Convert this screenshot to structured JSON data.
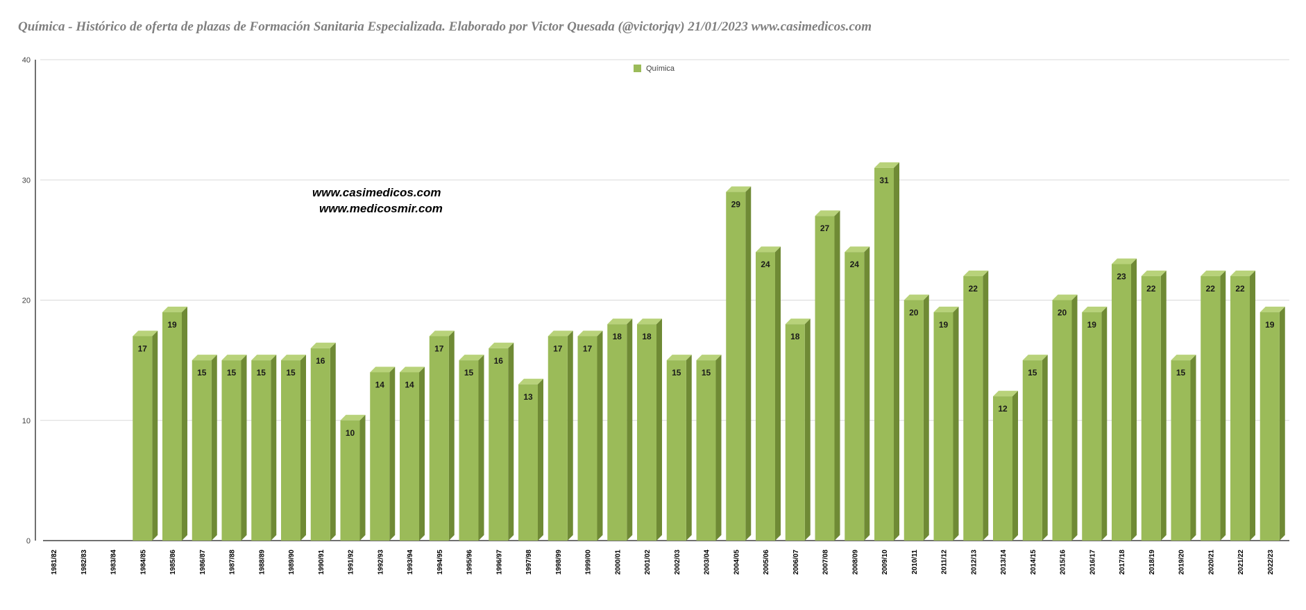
{
  "chart_data": {
    "type": "bar",
    "title": "Química - Histórico de oferta de plazas de Formación Sanitaria Especializada. Elaborado por Victor Quesada (@victorjqv)  21/01/2023 www.casimedicos.com",
    "series": [
      {
        "name": "Química",
        "color": "#9bbb59",
        "values": [
          0,
          0,
          0,
          17,
          19,
          15,
          15,
          15,
          15,
          16,
          10,
          14,
          14,
          17,
          15,
          16,
          13,
          17,
          17,
          18,
          18,
          15,
          15,
          29,
          24,
          18,
          27,
          24,
          31,
          20,
          19,
          22,
          12,
          15,
          20,
          19,
          23,
          22,
          15,
          22,
          22,
          19
        ]
      }
    ],
    "categories": [
      "1981/82",
      "1982/83",
      "1983/84",
      "1984/85",
      "1985/86",
      "1986/87",
      "1987/88",
      "1988/89",
      "1989/90",
      "1990/91",
      "1991/92",
      "1992/93",
      "1993/94",
      "1994/95",
      "1995/96",
      "1996/97",
      "1997/98",
      "1998/99",
      "1999/00",
      "2000/01",
      "2001/02",
      "2002/03",
      "2003/04",
      "2004/05",
      "2005/06",
      "2006/07",
      "2007/08",
      "2008/09",
      "2009/10",
      "2010/11",
      "2011/12",
      "2012/13",
      "2013/14",
      "2014/15",
      "2015/16",
      "2016/17",
      "2017/18",
      "2018/19",
      "2019/20",
      "2020/21",
      "2021/22",
      "2022/23"
    ],
    "ylim": [
      0,
      40
    ],
    "yticks": [
      "0",
      "10",
      "20",
      "30",
      "40"
    ],
    "grid": true,
    "legend": "top-center",
    "style": "3d-columns"
  },
  "watermarks": [
    "www.casimedicos.com",
    "www.medicosmir.com"
  ]
}
